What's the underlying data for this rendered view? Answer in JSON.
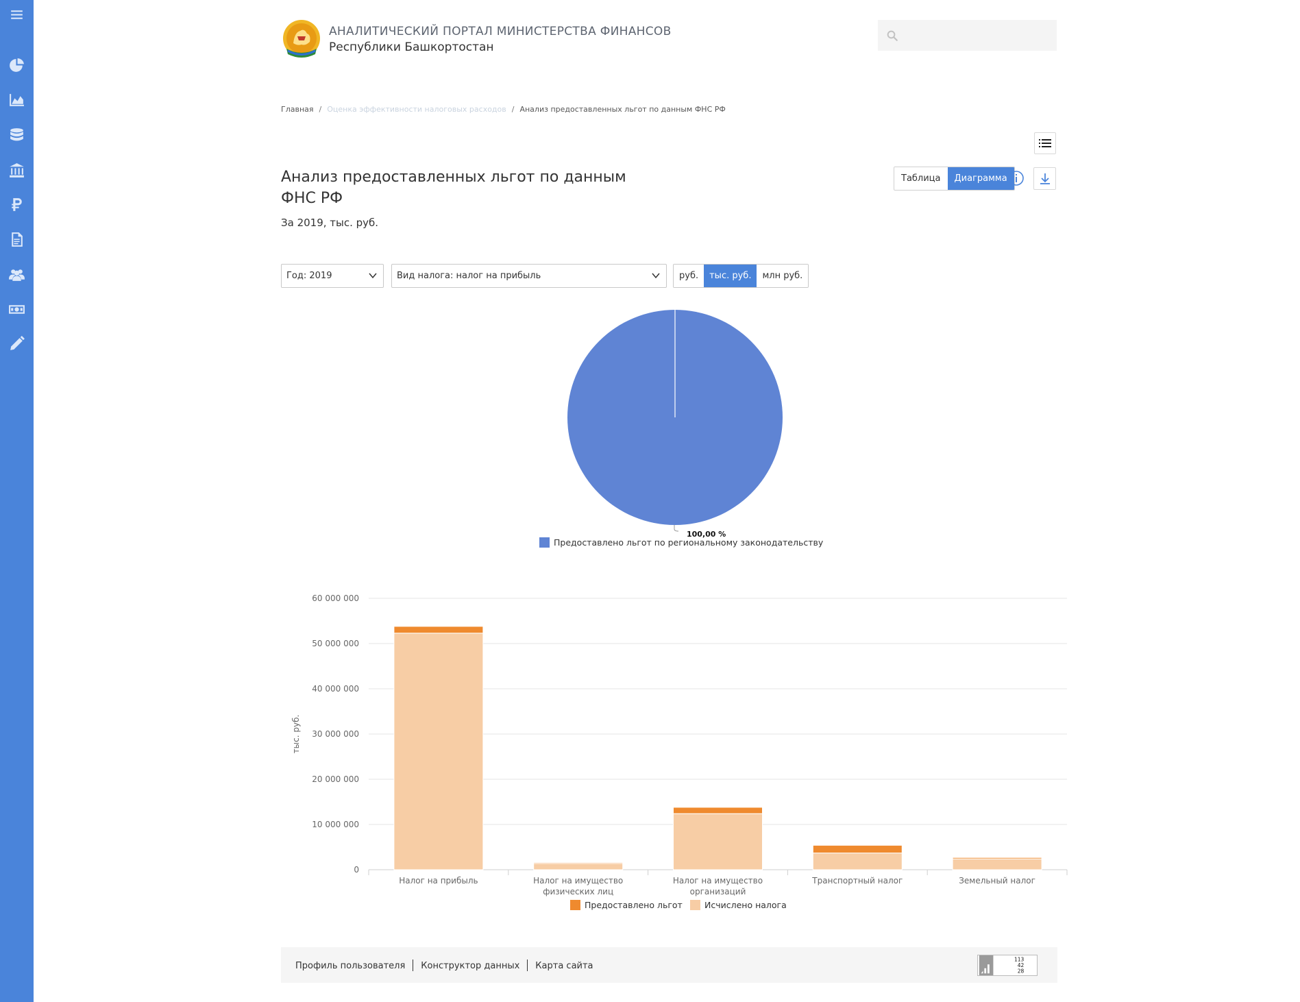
{
  "sidebar": {
    "icons": [
      "menu-icon",
      "pie-chart-icon",
      "area-chart-icon",
      "database-icon",
      "bank-icon",
      "ruble-icon",
      "document-icon",
      "users-icon",
      "money-icon",
      "pencil-icon"
    ],
    "color": "#4a84da"
  },
  "header": {
    "title": "АНАЛИТИЧЕСКИЙ ПОРТАЛ МИНИСТЕРСТВА ФИНАНСОВ",
    "subtitle": "Республики Башкортостан",
    "search_placeholder": ""
  },
  "breadcrumb": {
    "home": "Главная",
    "section": "Оценка эффективности налоговых расходов",
    "current": "Анализ предоставленных льгот по данным ФНС РФ"
  },
  "page": {
    "title": "Анализ предоставленных льгот по данным ФНС РФ",
    "subtitle": "За 2019, тыс. руб."
  },
  "view_toggle": {
    "table": "Таблица",
    "chart": "Диаграмма",
    "active": "Диаграмма"
  },
  "filters": {
    "year": "Год: 2019",
    "tax_type": "Вид налога: налог на прибыль",
    "units": [
      "руб.",
      "тыс. руб.",
      "млн руб."
    ],
    "active_unit": "тыс. руб."
  },
  "chart_data": [
    {
      "type": "pie",
      "slices": [
        {
          "name": "Предоставлено льгот по региональному законодательству",
          "value": 100.0,
          "label": "100,00 %",
          "color": "#5f84d4"
        }
      ],
      "legend": "bottom"
    },
    {
      "type": "bar",
      "stacked": true,
      "categories": [
        "Налог на прибыль",
        "Налог на имущество физических лиц",
        "Налог на имущество организаций",
        "Транспортный налог",
        "Земельный налог"
      ],
      "category_lines": [
        [
          "Налог на прибыль"
        ],
        [
          "Налог на имущество",
          "физических лиц"
        ],
        [
          "Налог на имущество",
          "организаций"
        ],
        [
          "Транспортный налог"
        ],
        [
          "Земельный налог"
        ]
      ],
      "series": [
        {
          "name": "Исчислено налога",
          "values": [
            52300000,
            1400000,
            12400000,
            3700000,
            2400000
          ],
          "color": "#f7cda5"
        },
        {
          "name": "Предоставлено льгот",
          "values": [
            1500000,
            200000,
            1400000,
            1700000,
            300000
          ],
          "color": "#ef8a2e"
        }
      ],
      "ylabel": "тыс. руб.",
      "ylim": [
        0,
        60000000
      ],
      "yticks": [
        "0",
        "10 000 000",
        "20 000 000",
        "30 000 000",
        "40 000 000",
        "50 000 000",
        "60 000 000"
      ],
      "grid": true,
      "legend": "bottom",
      "legend_order": [
        "Предоставлено льгот",
        "Исчислено налога"
      ]
    }
  ],
  "footer": {
    "links": [
      "Профиль пользователя",
      "Конструктор данных",
      "Карта сайта"
    ],
    "counter": [
      "113",
      "42",
      "28"
    ]
  }
}
